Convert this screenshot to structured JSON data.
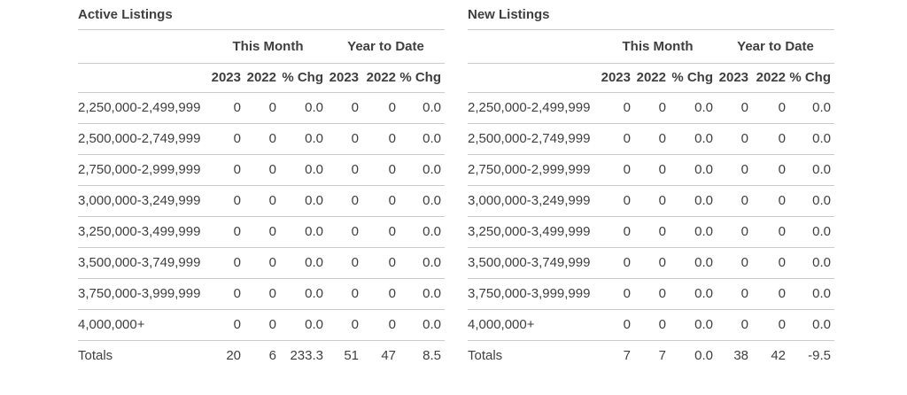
{
  "page": {
    "background": "#ffffff",
    "text_color": "#3f3f3f",
    "divider_color": "#cbcbcb"
  },
  "tables": [
    {
      "title": "Active Listings",
      "group_headers": {
        "this_month": "This Month",
        "year_to_date": "Year to Date"
      },
      "column_headers": [
        "2023",
        "2022",
        "% Chg",
        "2023",
        "2022",
        "% Chg"
      ],
      "rows": [
        {
          "label": "2,250,000-2,499,999",
          "values": [
            "0",
            "0",
            "0.0",
            "0",
            "0",
            "0.0"
          ]
        },
        {
          "label": "2,500,000-2,749,999",
          "values": [
            "0",
            "0",
            "0.0",
            "0",
            "0",
            "0.0"
          ]
        },
        {
          "label": "2,750,000-2,999,999",
          "values": [
            "0",
            "0",
            "0.0",
            "0",
            "0",
            "0.0"
          ]
        },
        {
          "label": "3,000,000-3,249,999",
          "values": [
            "0",
            "0",
            "0.0",
            "0",
            "0",
            "0.0"
          ]
        },
        {
          "label": "3,250,000-3,499,999",
          "values": [
            "0",
            "0",
            "0.0",
            "0",
            "0",
            "0.0"
          ]
        },
        {
          "label": "3,500,000-3,749,999",
          "values": [
            "0",
            "0",
            "0.0",
            "0",
            "0",
            "0.0"
          ]
        },
        {
          "label": "3,750,000-3,999,999",
          "values": [
            "0",
            "0",
            "0.0",
            "0",
            "0",
            "0.0"
          ]
        },
        {
          "label": "4,000,000+",
          "values": [
            "0",
            "0",
            "0.0",
            "0",
            "0",
            "0.0"
          ]
        }
      ],
      "totals": {
        "label": "Totals",
        "values": [
          "20",
          "6",
          "233.3",
          "51",
          "47",
          "8.5"
        ]
      }
    },
    {
      "title": "New Listings",
      "group_headers": {
        "this_month": "This Month",
        "year_to_date": "Year to Date"
      },
      "column_headers": [
        "2023",
        "2022",
        "% Chg",
        "2023",
        "2022",
        "% Chg"
      ],
      "rows": [
        {
          "label": "2,250,000-2,499,999",
          "values": [
            "0",
            "0",
            "0.0",
            "0",
            "0",
            "0.0"
          ]
        },
        {
          "label": "2,500,000-2,749,999",
          "values": [
            "0",
            "0",
            "0.0",
            "0",
            "0",
            "0.0"
          ]
        },
        {
          "label": "2,750,000-2,999,999",
          "values": [
            "0",
            "0",
            "0.0",
            "0",
            "0",
            "0.0"
          ]
        },
        {
          "label": "3,000,000-3,249,999",
          "values": [
            "0",
            "0",
            "0.0",
            "0",
            "0",
            "0.0"
          ]
        },
        {
          "label": "3,250,000-3,499,999",
          "values": [
            "0",
            "0",
            "0.0",
            "0",
            "0",
            "0.0"
          ]
        },
        {
          "label": "3,500,000-3,749,999",
          "values": [
            "0",
            "0",
            "0.0",
            "0",
            "0",
            "0.0"
          ]
        },
        {
          "label": "3,750,000-3,999,999",
          "values": [
            "0",
            "0",
            "0.0",
            "0",
            "0",
            "0.0"
          ]
        },
        {
          "label": "4,000,000+",
          "values": [
            "0",
            "0",
            "0.0",
            "0",
            "0",
            "0.0"
          ]
        }
      ],
      "totals": {
        "label": "Totals",
        "values": [
          "7",
          "7",
          "0.0",
          "38",
          "42",
          "-9.5"
        ]
      }
    }
  ]
}
